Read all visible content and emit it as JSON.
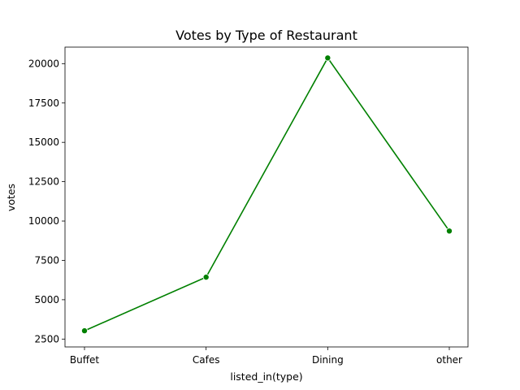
{
  "chart_data": {
    "type": "line",
    "title": "Votes by Type of Restaurant",
    "xlabel": "listed_in(type)",
    "ylabel": "votes",
    "categories": [
      "Buffet",
      "Cafes",
      "Dining",
      "other"
    ],
    "series": [
      {
        "values": [
          3028,
          6434,
          20363,
          9367
        ],
        "color": "#008000",
        "marker": "circle"
      }
    ],
    "yticks": [
      2500,
      5000,
      7500,
      10000,
      12500,
      15000,
      17500,
      20000
    ],
    "ylim": [
      2000,
      21050
    ],
    "grid": false,
    "legend": "none"
  }
}
